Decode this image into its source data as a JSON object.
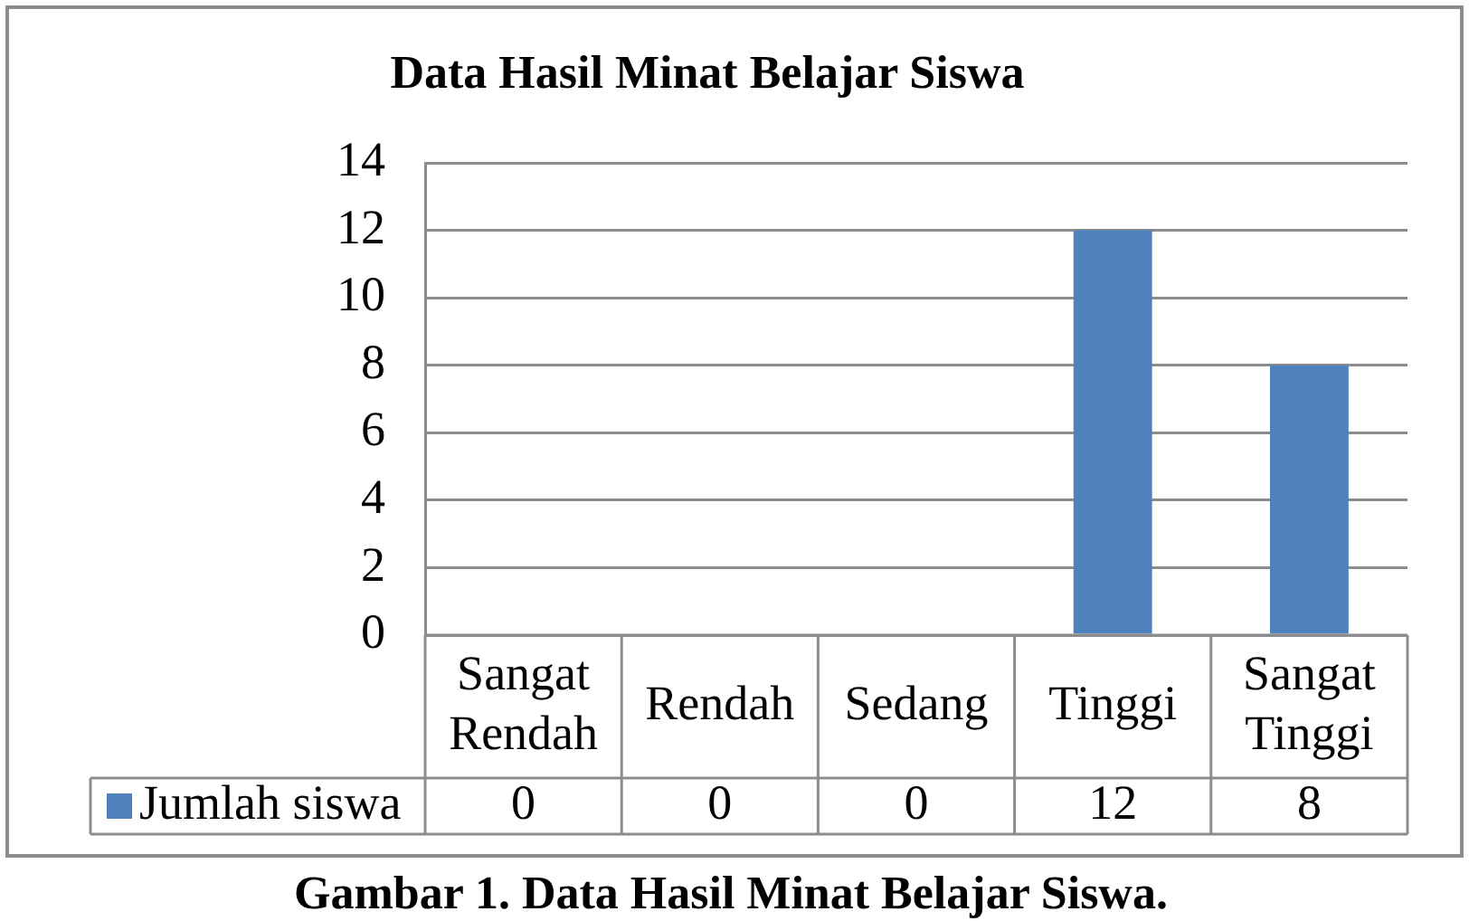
{
  "chart_data": {
    "type": "bar",
    "title": "Data Hasil Minat Belajar Siswa",
    "categories": [
      "Sangat Rendah",
      "Rendah",
      "Sedang",
      "Tinggi",
      "Sangat Tinggi"
    ],
    "series": [
      {
        "name": "Jumlah siswa",
        "color": "#4f81bd",
        "values": [
          0,
          0,
          0,
          12,
          8
        ]
      }
    ],
    "ylim": [
      0,
      14
    ],
    "yticks": [
      0,
      2,
      4,
      6,
      8,
      10,
      12,
      14
    ],
    "grid": "y",
    "legend": "bottom left",
    "data_labels": true,
    "annotations": [
      "Gambar 1. Data Hasil Minat Belajar Siswa."
    ]
  }
}
